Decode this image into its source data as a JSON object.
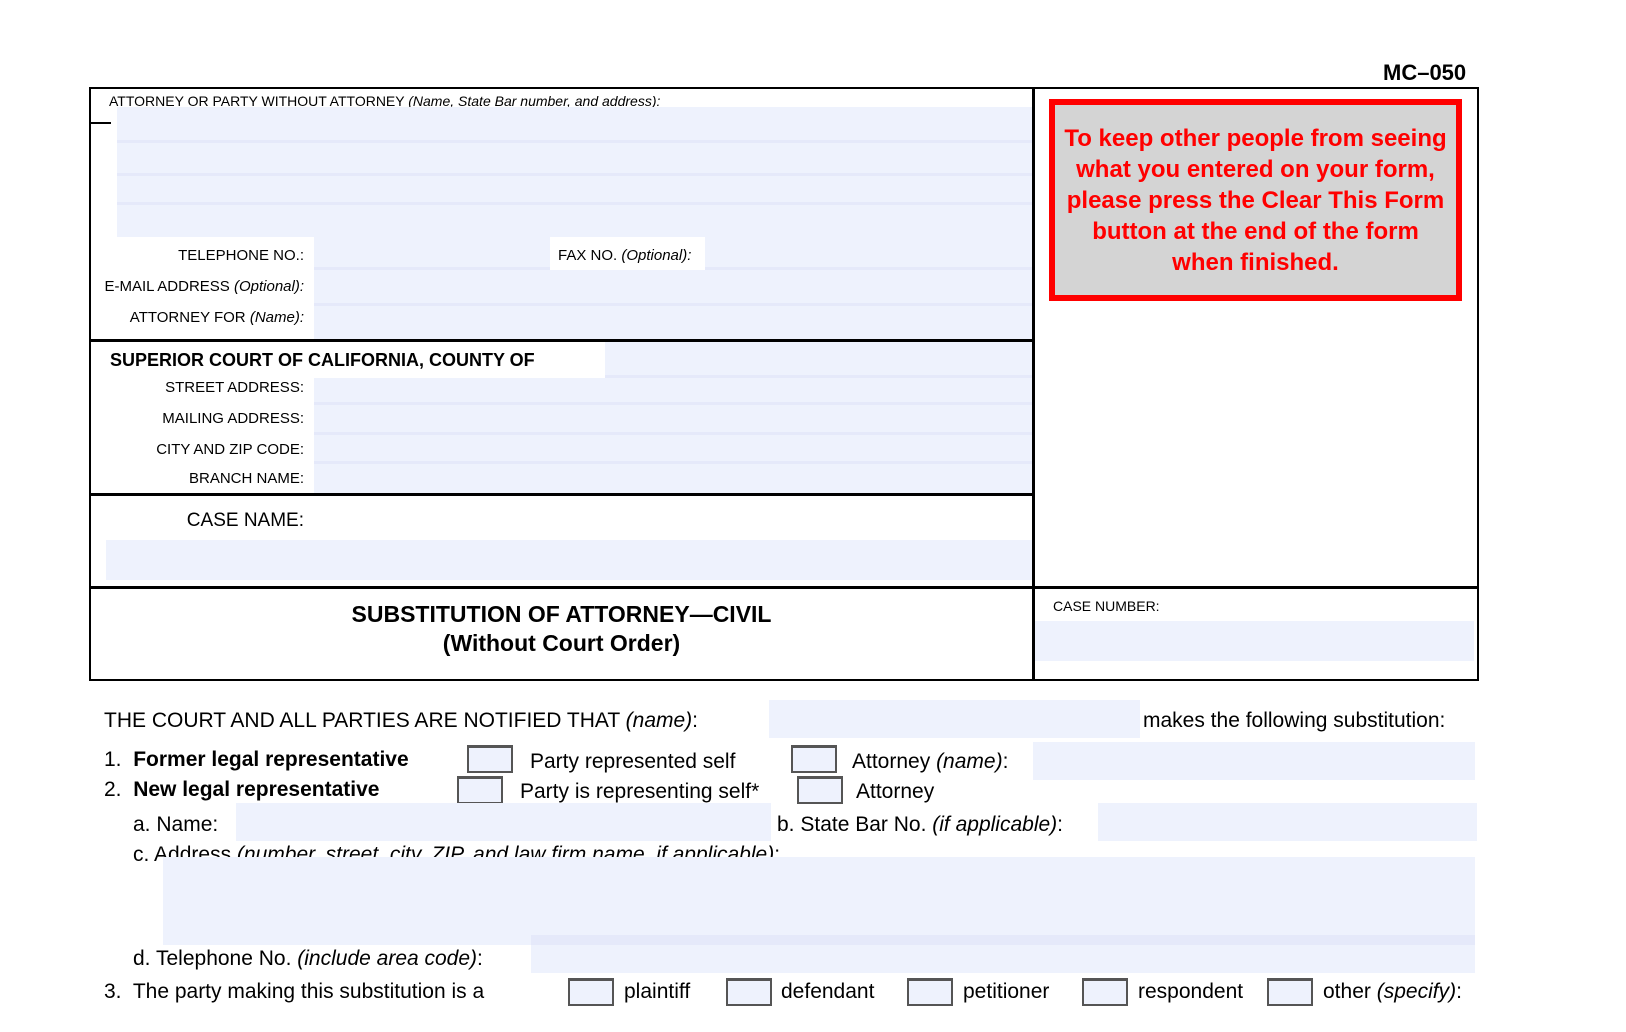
{
  "form_id": "MC–050",
  "attorney_header": {
    "label": "ATTORNEY OR PARTY WITHOUT ATTORNEY",
    "hint": "(Name, State Bar number, and address):"
  },
  "telephone_label": "TELEPHONE NO.:",
  "fax_label": "FAX NO.",
  "fax_hint": "(Optional):",
  "email_label": "E-MAIL ADDRESS",
  "email_hint": "(Optional):",
  "attorney_for_label": "ATTORNEY FOR",
  "attorney_for_hint": "(Name):",
  "court_title": "SUPERIOR COURT OF CALIFORNIA, COUNTY OF",
  "street_label": "STREET ADDRESS:",
  "mailing_label": "MAILING ADDRESS:",
  "city_label": "CITY AND ZIP CODE:",
  "branch_label": "BRANCH NAME:",
  "case_name_label": "CASE NAME:",
  "notice": "To keep other people from seeing what you entered on your form, please press the Clear This Form button at the end of the form when finished.",
  "notice_color": "#ff0000",
  "doc_title": "SUBSTITUTION OF ATTORNEY—CIVIL",
  "doc_subtitle": "(Without Court Order)",
  "case_number_label": "CASE NUMBER:",
  "notified": {
    "text": "THE COURT AND ALL PARTIES ARE NOTIFIED THAT",
    "hint": "(name)",
    "colon": ":",
    "after": "makes the following substitution:"
  },
  "item1": {
    "num": "1.",
    "label": "Former legal representative",
    "opt1": "Party represented self",
    "opt2": "Attorney",
    "opt2_hint": "(name)",
    "colon": ":"
  },
  "item2": {
    "num": "2.",
    "label": "New legal representative",
    "opt1": "Party is representing self*",
    "opt2": "Attorney"
  },
  "item2a": {
    "letter": "a.",
    "label": "Name:"
  },
  "item2b": {
    "letter": "b.",
    "label": "State Bar No.",
    "hint": "(if applicable)",
    "colon": ":"
  },
  "item2c": {
    "letter": "c.",
    "label": "Address",
    "hint": "(number, street, city, ZIP, and law firm name, if applicable)",
    "colon": ":"
  },
  "item2d": {
    "letter": "d.",
    "label": "Telephone No.",
    "hint": "(include area code)",
    "colon": ":"
  },
  "item3": {
    "num": "3.",
    "label": "The party making this substitution is a",
    "opts": [
      "plaintiff",
      "defendant",
      "petitioner",
      "respondent"
    ],
    "other": "other",
    "other_hint": "(specify)",
    "colon": ":"
  }
}
